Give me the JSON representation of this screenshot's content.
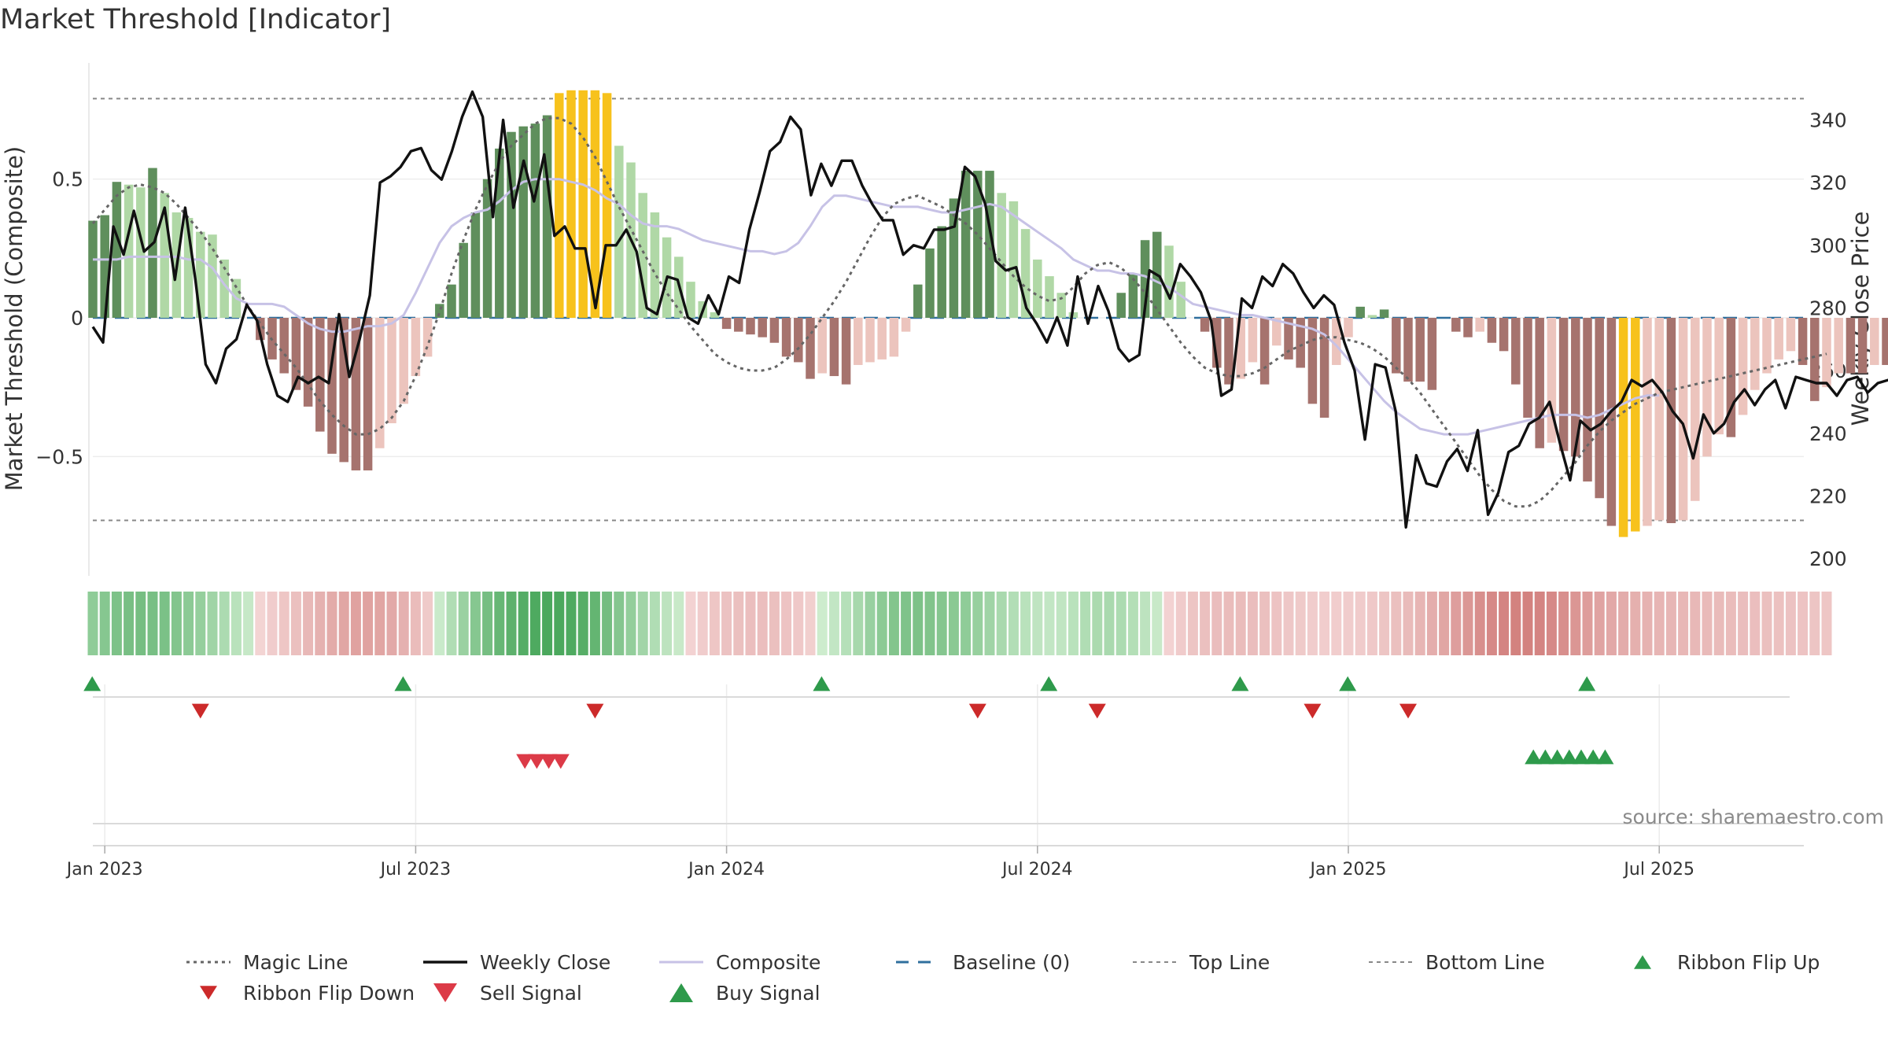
{
  "chart_data": {
    "type": "bar",
    "title": "Market Threshold [Indicator]",
    "ylabel": "Market Threshold (Composite)",
    "ylabel_right": "Weekly Close Price",
    "ylim": [
      -0.93,
      0.93
    ],
    "ylim_right": [
      194.5,
      359.2
    ],
    "yticks": [
      {
        "v": 0.5,
        "label": "0.5"
      },
      {
        "v": 0,
        "label": "0"
      },
      {
        "v": -0.5,
        "label": "−0.5"
      }
    ],
    "yticks_right": [
      {
        "v": 340,
        "label": "340"
      },
      {
        "v": 320,
        "label": "320"
      },
      {
        "v": 300,
        "label": "300"
      },
      {
        "v": 280,
        "label": "280"
      },
      {
        "v": 260,
        "label": "260"
      },
      {
        "v": 240,
        "label": "240"
      },
      {
        "v": 220,
        "label": "220"
      },
      {
        "v": 200,
        "label": "200"
      }
    ],
    "top_line": 0.79,
    "bottom_line": -0.73,
    "xticks": [
      {
        "w": 1,
        "label": "Jan 2023"
      },
      {
        "w": 27,
        "label": "Jul 2023"
      },
      {
        "w": 53,
        "label": "Jan 2024"
      },
      {
        "w": 79,
        "label": "Jul 2024"
      },
      {
        "w": 105,
        "label": "Jan 2025"
      },
      {
        "w": 131,
        "label": "Jul 2025"
      }
    ],
    "composite": [
      0.35,
      0.37,
      0.49,
      0.48,
      0.47,
      0.54,
      0.45,
      0.38,
      0.36,
      0.31,
      0.3,
      0.21,
      0.14,
      0,
      -0.08,
      -0.15,
      -0.2,
      -0.26,
      -0.32,
      -0.41,
      -0.49,
      -0.52,
      -0.55,
      -0.55,
      -0.47,
      -0.38,
      -0.31,
      -0.21,
      -0.14,
      0.05,
      0.12,
      0.27,
      0.38,
      0.5,
      0.61,
      0.67,
      0.69,
      0.7,
      0.73,
      0.81,
      0.82,
      0.82,
      0.82,
      0.81,
      0.62,
      0.56,
      0.45,
      0.38,
      0.29,
      0.22,
      0.13,
      0.06,
      0.02,
      -0.04,
      -0.05,
      -0.06,
      -0.07,
      -0.09,
      -0.14,
      -0.16,
      -0.22,
      -0.2,
      -0.21,
      -0.24,
      -0.17,
      -0.16,
      -0.15,
      -0.14,
      -0.05,
      0.12,
      0.25,
      0.33,
      0.43,
      0.53,
      0.53,
      0.53,
      0.45,
      0.42,
      0.32,
      0.21,
      0.15,
      0.09,
      0.02,
      0,
      0,
      0,
      0.09,
      0.16,
      0.28,
      0.31,
      0.26,
      0.13,
      0,
      -0.05,
      -0.18,
      -0.24,
      -0.22,
      -0.16,
      -0.24,
      -0.1,
      -0.15,
      -0.18,
      -0.31,
      -0.36,
      -0.17,
      -0.07,
      0.04,
      0.01,
      0.03,
      -0.2,
      -0.23,
      -0.23,
      -0.26,
      0,
      -0.05,
      -0.07,
      -0.05,
      -0.09,
      -0.12,
      -0.24,
      -0.36,
      -0.47,
      -0.45,
      -0.48,
      -0.5,
      -0.59,
      -0.65,
      -0.75,
      -0.79,
      -0.77,
      -0.75,
      -0.73,
      -0.74,
      -0.73,
      -0.66,
      -0.5,
      -0.42,
      -0.43,
      -0.35,
      -0.26,
      -0.2,
      -0.15,
      -0.12,
      -0.17,
      -0.3,
      -0.25,
      -0.2,
      -0.2,
      -0.2,
      -0.17,
      -0.17,
      -0.16
    ],
    "magic": [
      0.34,
      0.39,
      0.44,
      0.47,
      0.48,
      0.47,
      0.45,
      0.41,
      0.36,
      0.31,
      0.25,
      0.18,
      0.11,
      0.04,
      -0.02,
      -0.08,
      -0.13,
      -0.18,
      -0.24,
      -0.3,
      -0.35,
      -0.39,
      -0.42,
      -0.42,
      -0.4,
      -0.36,
      -0.3,
      -0.21,
      -0.1,
      0.02,
      0.16,
      0.28,
      0.39,
      0.48,
      0.56,
      0.62,
      0.66,
      0.7,
      0.72,
      0.72,
      0.7,
      0.65,
      0.58,
      0.49,
      0.4,
      0.32,
      0.24,
      0.16,
      0.09,
      0.03,
      -0.03,
      -0.08,
      -0.13,
      -0.16,
      -0.18,
      -0.19,
      -0.19,
      -0.18,
      -0.15,
      -0.11,
      -0.06,
      0,
      0.06,
      0.13,
      0.21,
      0.29,
      0.36,
      0.41,
      0.43,
      0.44,
      0.42,
      0.4,
      0.37,
      0.34,
      0.3,
      0.25,
      0.2,
      0.15,
      0.11,
      0.08,
      0.06,
      0.07,
      0.11,
      0.16,
      0.19,
      0.2,
      0.18,
      0.14,
      0.09,
      0.03,
      -0.03,
      -0.09,
      -0.14,
      -0.18,
      -0.2,
      -0.21,
      -0.21,
      -0.2,
      -0.18,
      -0.15,
      -0.12,
      -0.1,
      -0.08,
      -0.07,
      -0.07,
      -0.08,
      -0.09,
      -0.11,
      -0.14,
      -0.18,
      -0.22,
      -0.27,
      -0.33,
      -0.39,
      -0.45,
      -0.51,
      -0.57,
      -0.62,
      -0.66,
      -0.68,
      -0.68,
      -0.66,
      -0.62,
      -0.57,
      -0.52,
      -0.46,
      -0.41,
      -0.37,
      -0.34,
      -0.31,
      -0.29,
      -0.27,
      -0.26,
      -0.25,
      -0.24,
      -0.23,
      -0.22,
      -0.21,
      -0.2,
      -0.19,
      -0.18,
      -0.17,
      -0.16,
      -0.15,
      -0.14,
      -0.13
    ],
    "smooth": [
      0.21,
      0.21,
      0.21,
      0.22,
      0.22,
      0.22,
      0.22,
      0.22,
      0.21,
      0.21,
      0.18,
      0.12,
      0.07,
      0.05,
      0.05,
      0.05,
      0.04,
      0.01,
      -0.02,
      -0.04,
      -0.05,
      -0.05,
      -0.04,
      -0.03,
      -0.03,
      -0.02,
      0.01,
      0.09,
      0.18,
      0.27,
      0.33,
      0.36,
      0.38,
      0.39,
      0.42,
      0.46,
      0.49,
      0.5,
      0.5,
      0.5,
      0.49,
      0.48,
      0.46,
      0.43,
      0.41,
      0.37,
      0.34,
      0.33,
      0.33,
      0.32,
      0.3,
      0.28,
      0.27,
      0.26,
      0.25,
      0.24,
      0.24,
      0.23,
      0.24,
      0.27,
      0.33,
      0.4,
      0.44,
      0.44,
      0.43,
      0.42,
      0.41,
      0.4,
      0.4,
      0.4,
      0.39,
      0.38,
      0.38,
      0.39,
      0.4,
      0.41,
      0.4,
      0.37,
      0.34,
      0.31,
      0.28,
      0.25,
      0.21,
      0.19,
      0.17,
      0.17,
      0.16,
      0.16,
      0.15,
      0.13,
      0.11,
      0.08,
      0.05,
      0.04,
      0.03,
      0.02,
      0.01,
      0.01,
      0.0,
      -0.01,
      -0.02,
      -0.03,
      -0.04,
      -0.06,
      -0.1,
      -0.15,
      -0.2,
      -0.25,
      -0.3,
      -0.34,
      -0.37,
      -0.4,
      -0.41,
      -0.42,
      -0.42,
      -0.42,
      -0.41,
      -0.4,
      -0.39,
      -0.38,
      -0.37,
      -0.36,
      -0.35,
      -0.35,
      -0.35,
      -0.36,
      -0.35,
      -0.33,
      -0.31,
      -0.29,
      -0.28,
      -0.28
    ],
    "price": [
      274,
      269,
      306,
      297,
      311,
      298,
      301,
      312,
      289,
      312,
      289,
      262,
      256,
      267,
      270,
      281,
      276,
      262,
      252,
      250,
      258,
      256,
      258,
      256,
      278,
      258,
      270,
      284,
      320,
      322,
      325,
      330,
      331,
      324,
      321,
      330,
      341,
      349,
      341,
      309,
      340,
      312,
      327,
      314,
      329,
      303,
      306,
      299,
      299,
      280,
      300,
      300,
      305,
      298,
      280,
      278,
      290,
      289,
      277,
      275,
      284,
      278,
      290,
      288,
      305,
      317,
      330,
      333,
      341,
      337,
      316,
      326,
      319,
      327,
      327,
      319,
      313,
      308,
      308,
      297,
      300,
      299,
      305,
      305,
      306,
      325,
      322,
      313,
      295,
      292,
      293,
      280,
      275,
      269,
      277,
      268,
      290,
      275,
      287,
      279,
      267,
      263,
      265,
      292,
      290,
      283,
      294,
      290,
      285,
      276,
      252,
      254,
      283,
      280,
      290,
      287,
      294,
      291,
      285,
      280,
      284,
      281,
      269,
      260,
      238,
      262,
      261,
      247,
      210,
      233,
      224,
      223,
      231,
      235,
      228,
      241,
      214,
      221,
      234,
      236,
      243,
      245,
      250,
      237,
      225,
      244,
      241,
      243,
      247,
      250,
      257,
      255,
      257,
      253,
      247,
      243,
      232,
      246,
      240,
      243,
      250,
      254,
      249,
      254,
      257,
      248,
      258,
      257,
      256,
      256,
      252,
      257,
      258,
      253,
      256,
      257,
      255
    ]
  },
  "legend": [
    {
      "key": "magic",
      "label": "Magic Line"
    },
    {
      "key": "close",
      "label": "Weekly Close"
    },
    {
      "key": "composite",
      "label": "Composite"
    },
    {
      "key": "baseline",
      "label": "Baseline (0)"
    },
    {
      "key": "top",
      "label": "Top Line"
    },
    {
      "key": "bottom",
      "label": "Bottom Line"
    },
    {
      "key": "ribbon_up",
      "label": "Ribbon Flip Up"
    },
    {
      "key": "ribbon_down",
      "label": "Ribbon Flip Down"
    },
    {
      "key": "sell",
      "label": "Sell Signal"
    },
    {
      "key": "buy",
      "label": "Buy Signal"
    }
  ],
  "source": "source: sharemaestro.com",
  "colors": {
    "strong_bull": "#5f8f5c",
    "weak_bull": "#b0d8a6",
    "strong_bear": "#a6736e",
    "weak_bear": "#ecc4bd",
    "extreme": "#f7c21c",
    "smooth": "#c7c2e6",
    "ribbon_up": "#2e9a4b",
    "ribbon_down": "#cc2a2a",
    "sell": "#dc3a47",
    "buy": "#2e9a4b",
    "baseline": "#2f6f9e"
  },
  "ribbon_up": [
    1,
    27,
    62,
    81,
    97,
    106,
    126
  ],
  "ribbon_down": [
    9,
    42,
    74,
    84,
    102,
    110
  ],
  "sell_signals": [
    36,
    37,
    38,
    39
  ],
  "buy_signals": [
    121,
    122,
    123,
    124,
    125,
    126,
    127
  ]
}
